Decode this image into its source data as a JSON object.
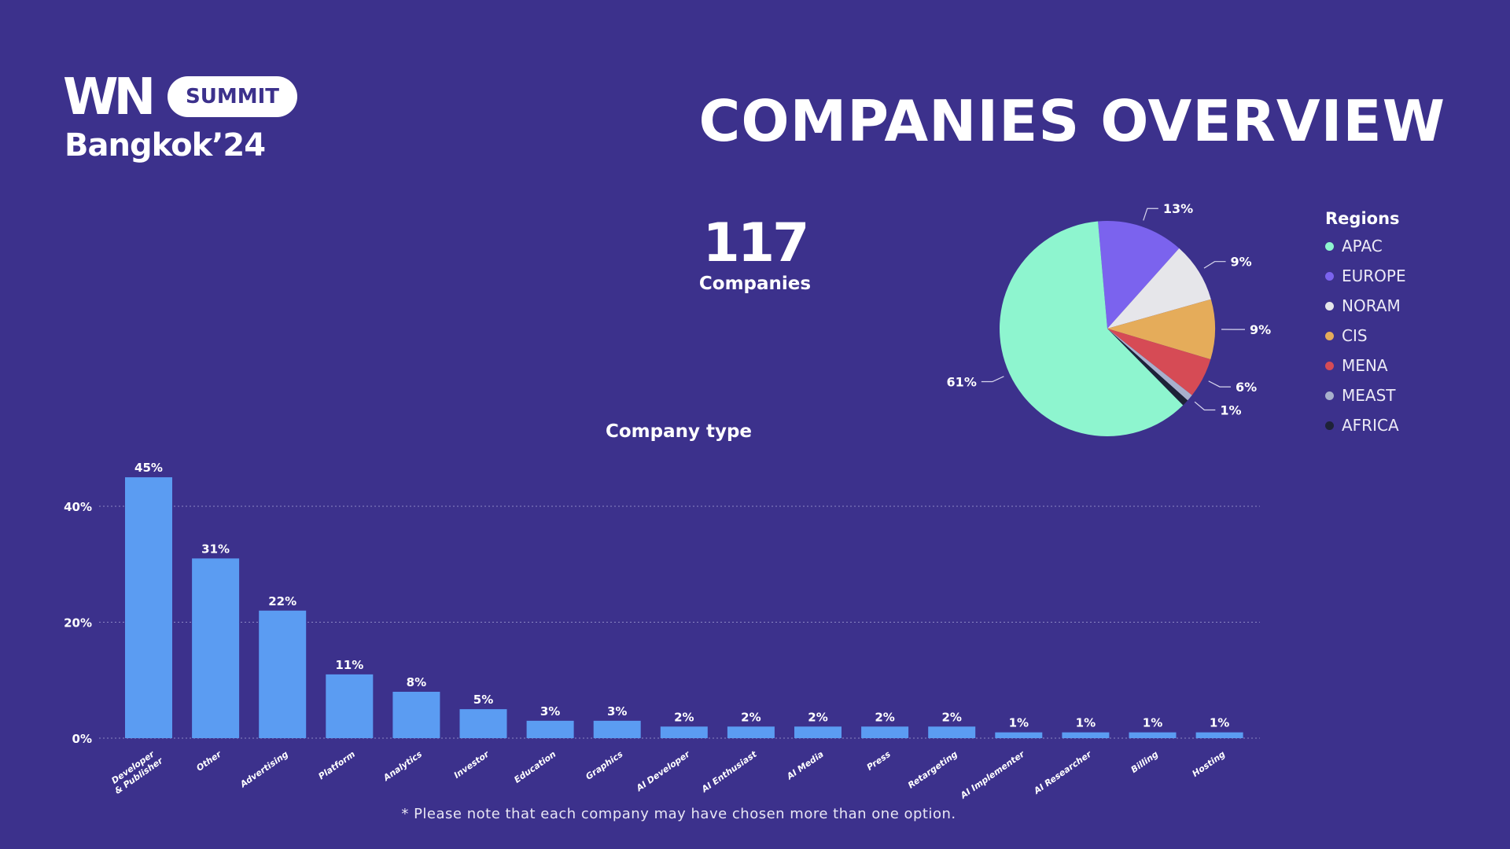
{
  "logo": {
    "mark": "WN",
    "pill": "SUMMIT",
    "city": "Bangkok’24"
  },
  "header": {
    "title": "COMPANIES OVERVIEW"
  },
  "summary": {
    "total": "117",
    "label": "Companies"
  },
  "footnote": "* Please note that each company may have chosen more than one option.",
  "colors": {
    "background": "#3c318c",
    "bar": "#5b9cf2"
  },
  "chart_data": [
    {
      "type": "pie",
      "title": "Regions",
      "legend_position": "right",
      "slices": [
        {
          "name": "APAC",
          "value": 61,
          "label": "61%",
          "color": "#8ef5cf"
        },
        {
          "name": "EUROPE",
          "value": 13,
          "label": "13%",
          "color": "#7b63ee"
        },
        {
          "name": "NORAM",
          "value": 9,
          "label": "9%",
          "color": "#e6e6ea"
        },
        {
          "name": "CIS",
          "value": 9,
          "label": "9%",
          "color": "#e5ac5a"
        },
        {
          "name": "MENA",
          "value": 6,
          "label": "6%",
          "color": "#d64b55"
        },
        {
          "name": "MEAST",
          "value": 1,
          "label": "1%",
          "color": "#a8b0cc"
        },
        {
          "name": "AFRICA",
          "value": 1,
          "label": "",
          "color": "#1e2238"
        }
      ]
    },
    {
      "type": "bar",
      "title": "Company type",
      "xlabel": "",
      "ylabel": "",
      "ylim": [
        0,
        50
      ],
      "yticks": [
        {
          "value": 0,
          "label": "0%"
        },
        {
          "value": 20,
          "label": "20%"
        },
        {
          "value": 40,
          "label": "40%"
        }
      ],
      "grid": true,
      "categories": [
        "Developer & Publisher",
        "Other",
        "Advertising",
        "Platform",
        "Analytics",
        "Investor",
        "Education",
        "Graphics",
        "AI Developer",
        "AI Enthusiast",
        "AI Media",
        "Press",
        "Retargeting",
        "AI Implementer",
        "AI Researcher",
        "Billing",
        "Hosting"
      ],
      "values": [
        45,
        31,
        22,
        11,
        8,
        5,
        3,
        3,
        2,
        2,
        2,
        2,
        2,
        1,
        1,
        1,
        1
      ],
      "labels": [
        "45%",
        "31%",
        "22%",
        "11%",
        "8%",
        "5%",
        "3%",
        "3%",
        "2%",
        "2%",
        "2%",
        "2%",
        "2%",
        "1%",
        "1%",
        "1%",
        "1%"
      ]
    }
  ]
}
